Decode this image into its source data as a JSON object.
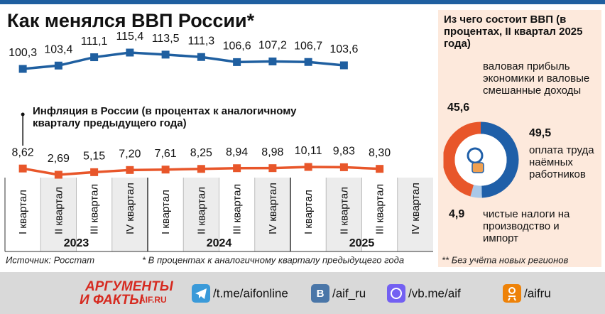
{
  "chart_data": [
    {
      "type": "line",
      "title": "Как менялся ВВП России*",
      "categories": [
        "I квартал",
        "II квартал",
        "III квартал",
        "IV квартал",
        "I квартал",
        "II квартал",
        "III квартал",
        "IV квартал",
        "I квартал",
        "II квартал",
        "III квартал",
        "IV квартал"
      ],
      "groups": [
        "2023",
        "2024",
        "2025"
      ],
      "series": [
        {
          "color": "#1f5fa0",
          "values": [
            100.3,
            103.4,
            111.1,
            115.4,
            113.5,
            111.3,
            106.6,
            107.2,
            106.7,
            103.6,
            null,
            null
          ],
          "value_labels": [
            "100,3",
            "103,4",
            "111,1",
            "115,4",
            "113,5",
            "111,3",
            "106,6",
            "107,2",
            "106,7",
            "103,6",
            null,
            null
          ]
        },
        {
          "name": "Инфляция в России (в процентах к аналогичному кварталу предыдущего года)",
          "color": "#e8562a",
          "values": [
            8.62,
            2.69,
            5.15,
            7.2,
            7.61,
            8.25,
            8.94,
            8.98,
            10.11,
            9.83,
            8.3,
            null
          ],
          "value_labels": [
            "8,62",
            "2,69",
            "5,15",
            "7,20",
            "7,61",
            "8,25",
            "8,94",
            "8,98",
            "10,11",
            "9,83",
            "8,30",
            null
          ]
        }
      ],
      "notes": [
        "Источник: Росстат",
        "* В процентах к аналогичному кварталу предыдущего года",
        "** Без учёта новых регионов"
      ]
    },
    {
      "type": "pie",
      "title": "Из чего состоит ВВП (в процентах, II квартал 2025 года)",
      "categories": [
        "валовая прибыль экономики и валовые смешанные доходы",
        "оплата труда наёмных работников",
        "чистые налоги на производство и импорт"
      ],
      "values": [
        45.6,
        49.5,
        4.9
      ],
      "value_labels": [
        "45,6",
        "49,5",
        "4,9"
      ],
      "colors": [
        "#e8562a",
        "#1f5fa8",
        "#a9c8e8"
      ]
    }
  ],
  "footer": {
    "logo": [
      "АРГУМЕНТЫ",
      "И ФАКТЫ",
      "AIF.RU"
    ],
    "links": [
      "/t.me/aifonline",
      "/aif_ru",
      "/vb.me/aif",
      "/aifru"
    ]
  }
}
